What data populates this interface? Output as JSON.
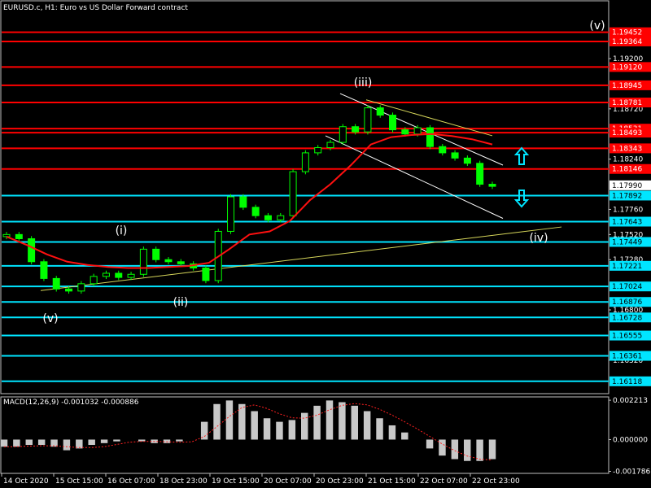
{
  "window": {
    "title": "EURUSD.c, H1:  Euro vs US Dollar Forward contract"
  },
  "colors": {
    "background": "#000000",
    "frame": "#c0c0c0",
    "grid": "#3a3a3a",
    "resistance": "#ff0000",
    "support": "#00e5ff",
    "trendline": "#d6d65a",
    "channel": "#ffffff",
    "ma": "#ff1010",
    "candle": "#00ff00",
    "label_text": "#ffffff",
    "arrow": "#00e5ff",
    "macd_hist": "#c8c8c8",
    "macd_signal": "#ff2020"
  },
  "price_axis": {
    "min": 1.16,
    "max": 1.1962,
    "ticks": [
      "1.19200",
      "1.18720",
      "1.18240",
      "1.17760",
      "1.17520",
      "1.17280",
      "1.16800",
      "1.16320"
    ],
    "current_price": "1.17990"
  },
  "level_lines": [
    {
      "value": "1.19452",
      "kind": "resistance"
    },
    {
      "value": "1.19364",
      "kind": "resistance"
    },
    {
      "value": "1.19120",
      "kind": "resistance"
    },
    {
      "value": "1.18945",
      "kind": "resistance"
    },
    {
      "value": "1.18781",
      "kind": "resistance"
    },
    {
      "value": "1.18531",
      "kind": "resistance"
    },
    {
      "value": "1.18493",
      "kind": "resistance"
    },
    {
      "value": "1.18343",
      "kind": "resistance"
    },
    {
      "value": "1.18146",
      "kind": "resistance"
    },
    {
      "value": "1.17892",
      "kind": "support"
    },
    {
      "value": "1.17643",
      "kind": "support"
    },
    {
      "value": "1.17449",
      "kind": "support"
    },
    {
      "value": "1.17221",
      "kind": "support"
    },
    {
      "value": "1.17024",
      "kind": "support"
    },
    {
      "value": "1.16876",
      "kind": "support"
    },
    {
      "value": "1.16728",
      "kind": "support"
    },
    {
      "value": "1.16555",
      "kind": "support"
    },
    {
      "value": "1.16361",
      "kind": "support"
    },
    {
      "value": "1.16118",
      "kind": "support"
    }
  ],
  "wave_labels": [
    "(v)",
    "(i)",
    "(ii)",
    "(iii)",
    "(iv)",
    "(v)"
  ],
  "arrows": [
    {
      "name": "up-arrow-icon",
      "icon": "hollow-up-arrow"
    },
    {
      "name": "down-arrow-icon",
      "icon": "hollow-down-arrow"
    }
  ],
  "macd": {
    "title": "MACD(12,26,9) -0.001032 -0.000886",
    "ticks": [
      "0.002213",
      "0.000000",
      "-0.001786"
    ],
    "min": -0.0019,
    "max": 0.0024
  },
  "time_axis": [
    "14 Oct 2020",
    "15 Oct 15:00",
    "16 Oct 07:00",
    "18 Oct 23:00",
    "19 Oct 15:00",
    "20 Oct 07:00",
    "20 Oct 23:00",
    "21 Oct 15:00",
    "22 Oct 07:00",
    "22 Oct 23:00"
  ],
  "series_path": [
    [
      1.175,
      1.1752
    ],
    [
      1.1752,
      1.1748
    ],
    [
      1.1748,
      1.1726
    ],
    [
      1.1726,
      1.171
    ],
    [
      1.171,
      1.17
    ],
    [
      1.17,
      1.1698
    ],
    [
      1.1698,
      1.1705
    ],
    [
      1.1705,
      1.1712
    ],
    [
      1.1712,
      1.1715
    ],
    [
      1.1715,
      1.1711
    ],
    [
      1.1711,
      1.1714
    ],
    [
      1.1714,
      1.1738
    ],
    [
      1.1738,
      1.1728
    ],
    [
      1.1728,
      1.1726
    ],
    [
      1.1726,
      1.1724
    ],
    [
      1.1724,
      1.172
    ],
    [
      1.172,
      1.1708
    ],
    [
      1.1708,
      1.1755
    ],
    [
      1.1755,
      1.1788
    ],
    [
      1.1788,
      1.1778
    ],
    [
      1.1778,
      1.177
    ],
    [
      1.177,
      1.1766
    ],
    [
      1.1766,
      1.177
    ],
    [
      1.177,
      1.1812
    ],
    [
      1.1812,
      1.183
    ],
    [
      1.183,
      1.1835
    ],
    [
      1.1835,
      1.184
    ],
    [
      1.184,
      1.1855
    ],
    [
      1.1855,
      1.185
    ],
    [
      1.185,
      1.1873
    ],
    [
      1.1873,
      1.1866
    ],
    [
      1.1866,
      1.1852
    ],
    [
      1.1852,
      1.1848
    ],
    [
      1.1848,
      1.1854
    ],
    [
      1.1854,
      1.1836
    ],
    [
      1.1836,
      1.183
    ],
    [
      1.183,
      1.1825
    ],
    [
      1.1825,
      1.182
    ],
    [
      1.182,
      1.18
    ],
    [
      1.18,
      1.1798
    ]
  ],
  "ma_path": [
    1.175,
    1.1742,
    1.1733,
    1.1726,
    1.1723,
    1.1721,
    1.172,
    1.172,
    1.1721,
    1.1722,
    1.1725,
    1.1738,
    1.1752,
    1.1755,
    1.1765,
    1.1785,
    1.18,
    1.1818,
    1.1838,
    1.1845,
    1.1847,
    1.1848,
    1.1846,
    1.1843,
    1.1838
  ],
  "macd_hist": [
    -0.0004,
    -0.0004,
    -0.0003,
    -0.0003,
    -0.0004,
    -0.0006,
    -0.0005,
    -0.0003,
    -0.0002,
    -0.0001,
    0.0,
    -0.0001,
    -0.0002,
    -0.0002,
    -0.0001,
    0.0,
    0.001,
    0.002,
    0.0022,
    0.002,
    0.0016,
    0.0012,
    0.001,
    0.0011,
    0.0015,
    0.0019,
    0.0022,
    0.0021,
    0.0019,
    0.0016,
    0.0012,
    0.0008,
    0.0004,
    0.0,
    -0.0005,
    -0.0009,
    -0.0011,
    -0.0012,
    -0.0012,
    -0.0011
  ]
}
